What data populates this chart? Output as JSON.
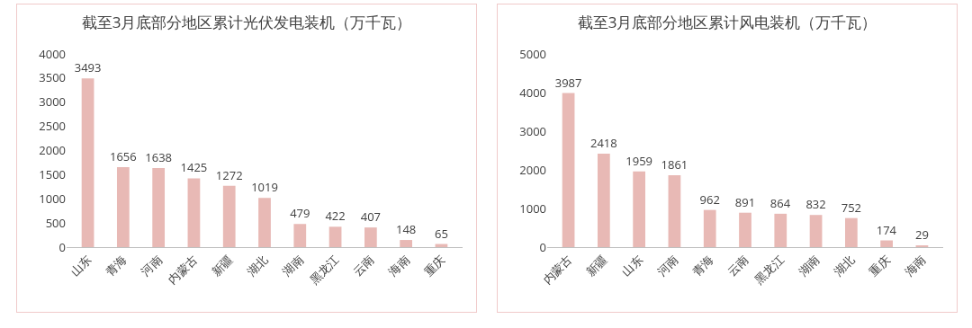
{
  "chart_data": [
    {
      "type": "bar",
      "title": "截至3月底部分地区累计光伏发电装机（万千瓦）",
      "categories": [
        "山东",
        "青海",
        "河南",
        "内蒙古",
        "新疆",
        "湖北",
        "湖南",
        "黑龙江",
        "云南",
        "海南",
        "重庆"
      ],
      "values": [
        3493,
        1656,
        1638,
        1425,
        1272,
        1019,
        479,
        422,
        407,
        148,
        65
      ],
      "color": "#e8b9b5",
      "ylim": [
        0,
        4000
      ],
      "yticks": [
        0,
        500,
        1000,
        1500,
        2000,
        2500,
        3000,
        3500,
        4000
      ],
      "data_labels": true,
      "grid": false,
      "legend": false
    },
    {
      "type": "bar",
      "title": "截至3月底部分地区累计风电装机（万千瓦）",
      "categories": [
        "内蒙古",
        "新疆",
        "山东",
        "河南",
        "青海",
        "云南",
        "黑龙江",
        "湖南",
        "湖北",
        "重庆",
        "海南"
      ],
      "values": [
        3987,
        2418,
        1959,
        1861,
        962,
        891,
        864,
        832,
        752,
        174,
        29
      ],
      "color": "#e8b9b5",
      "ylim": [
        0,
        5000
      ],
      "yticks": [
        0,
        1000,
        2000,
        3000,
        4000,
        5000
      ],
      "data_labels": true,
      "grid": false,
      "legend": false
    }
  ]
}
